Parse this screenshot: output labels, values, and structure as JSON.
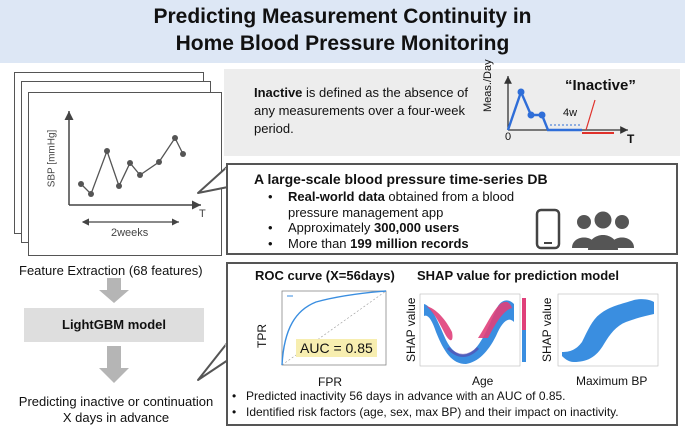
{
  "title": {
    "line1": "Predicting Measurement Continuity in",
    "line2": "Home Blood Pressure Monitoring"
  },
  "definition": {
    "bold": "Inactive",
    "text": " is defined as the absence of any measurements over a four-week period.",
    "graph": {
      "y_label": "Meas./Day",
      "x_label": "T",
      "origin": "0",
      "gap_label": "4w",
      "callout": "“Inactive”"
    }
  },
  "timeseries": {
    "y_label": "SBP [mmHg]",
    "x_label": "T",
    "span_label": "2weeks"
  },
  "db": {
    "title": "A large-scale blood pressure time-series DB",
    "items": [
      {
        "bold": "Real-world data",
        "text": " obtained from a blood pressure management app"
      },
      {
        "pre": "Approximately ",
        "bold": "300,000 users"
      },
      {
        "pre": "More than ",
        "bold": "199 million records"
      }
    ]
  },
  "pipeline": {
    "feature_extraction": "Feature Extraction (68 features)",
    "model": "LightGBM model",
    "output_line1": "Predicting inactive or continuation",
    "output_line2": "X days in advance"
  },
  "results": {
    "roc_title": "ROC curve (X=56days)",
    "shap_title": "SHAP value for prediction model",
    "roc": {
      "x_label": "FPR",
      "y_label": "TPR",
      "auc": "AUC = 0.85"
    },
    "shap_age": {
      "x_label": "Age",
      "y_label": "SHAP value"
    },
    "shap_bp": {
      "x_label": "Maximum BP",
      "y_label": "SHAP value"
    },
    "bullets": [
      "Predicted inactivity 56 days in advance with an AUC of 0.85.",
      "Identified risk factors (age, sex, max BP) and their impact on inactivity."
    ]
  },
  "colors": {
    "title_bg": "#dde7f5",
    "accent_blue": "#2f6ed8",
    "red": "#e0312b",
    "shap_blue": "#3a8ee0",
    "shap_pink": "#e0407a",
    "auc_bg": "#f7eeb0"
  }
}
